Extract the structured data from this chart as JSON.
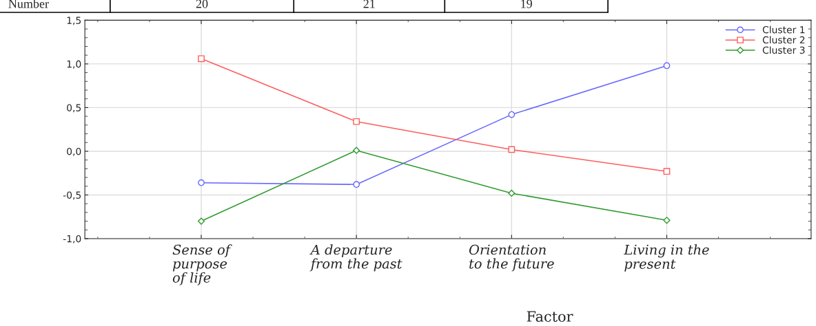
{
  "chart_data": {
    "type": "line",
    "xlabel": "Factor",
    "categories": [
      "Sense of\npurpose\nof life",
      "A departure\nfrom the past",
      "Orientation\nto the future",
      "Living in the\npresent"
    ],
    "series": [
      {
        "name": "Cluster 1",
        "color": "#6666ff",
        "marker": "circle",
        "values": [
          -0.36,
          -0.38,
          0.42,
          0.98
        ]
      },
      {
        "name": "Cluster 2",
        "color": "#ff5c5c",
        "marker": "square",
        "values": [
          1.06,
          0.34,
          0.02,
          -0.23
        ]
      },
      {
        "name": "Cluster 3",
        "color": "#2e9a2e",
        "marker": "diamond",
        "values": [
          -0.8,
          0.01,
          -0.48,
          -0.79
        ]
      }
    ],
    "ylim": [
      -1.0,
      1.5
    ],
    "yticks": [
      {
        "value": -1.0,
        "label": "-1,0"
      },
      {
        "value": -0.5,
        "label": "-0,5"
      },
      {
        "value": 0.0,
        "label": "0,0"
      },
      {
        "value": 0.5,
        "label": "0,5"
      },
      {
        "value": 1.0,
        "label": "1,0"
      },
      {
        "value": 1.5,
        "label": "1,5"
      }
    ],
    "grid": true,
    "legend": "top right",
    "line_style": "solid",
    "annotations": [
      "Number",
      "20",
      "21",
      "19"
    ]
  }
}
